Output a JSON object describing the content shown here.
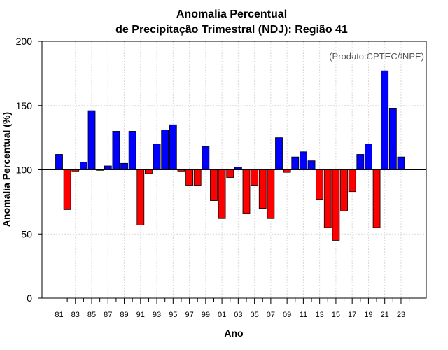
{
  "chart_data": {
    "type": "bar",
    "title_line1": "Anomalia Percentual",
    "title_line2": "de Precipitação Trimestral (NDJ): Região 41",
    "xlabel": "Ano",
    "ylabel": "Anomalia Percentual (%)",
    "credit": "(Produto:CPTEC/INPE)",
    "ylim": [
      0,
      200
    ],
    "yticks": [
      0,
      50,
      100,
      150,
      200
    ],
    "baseline": 100,
    "categories": [
      1981,
      1982,
      1983,
      1984,
      1985,
      1986,
      1987,
      1988,
      1989,
      1990,
      1991,
      1992,
      1993,
      1994,
      1995,
      1996,
      1997,
      1998,
      1999,
      2000,
      2001,
      2002,
      2003,
      2004,
      2005,
      2006,
      2007,
      2008,
      2009,
      2010,
      2011,
      2012,
      2013,
      2014,
      2015,
      2016,
      2017,
      2018,
      2019,
      2020,
      2021,
      2022,
      2023
    ],
    "values": [
      112,
      69,
      99,
      106,
      146,
      100,
      103,
      130,
      105,
      130,
      57,
      97,
      120,
      131,
      135,
      99,
      88,
      88,
      118,
      76,
      62,
      94,
      102,
      66,
      88,
      70,
      62,
      125,
      98,
      110,
      114,
      107,
      77,
      55,
      45,
      68,
      83,
      112,
      120,
      55,
      177,
      148,
      110
    ],
    "xtick_labels": [
      "81",
      "83",
      "85",
      "87",
      "89",
      "91",
      "93",
      "95",
      "97",
      "99",
      "01",
      "03",
      "05",
      "07",
      "09",
      "11",
      "13",
      "15",
      "17",
      "19",
      "21",
      "23"
    ],
    "colors": {
      "above": "#0000ff",
      "below": "#ff0000",
      "grid": "#d9d9d9"
    }
  }
}
